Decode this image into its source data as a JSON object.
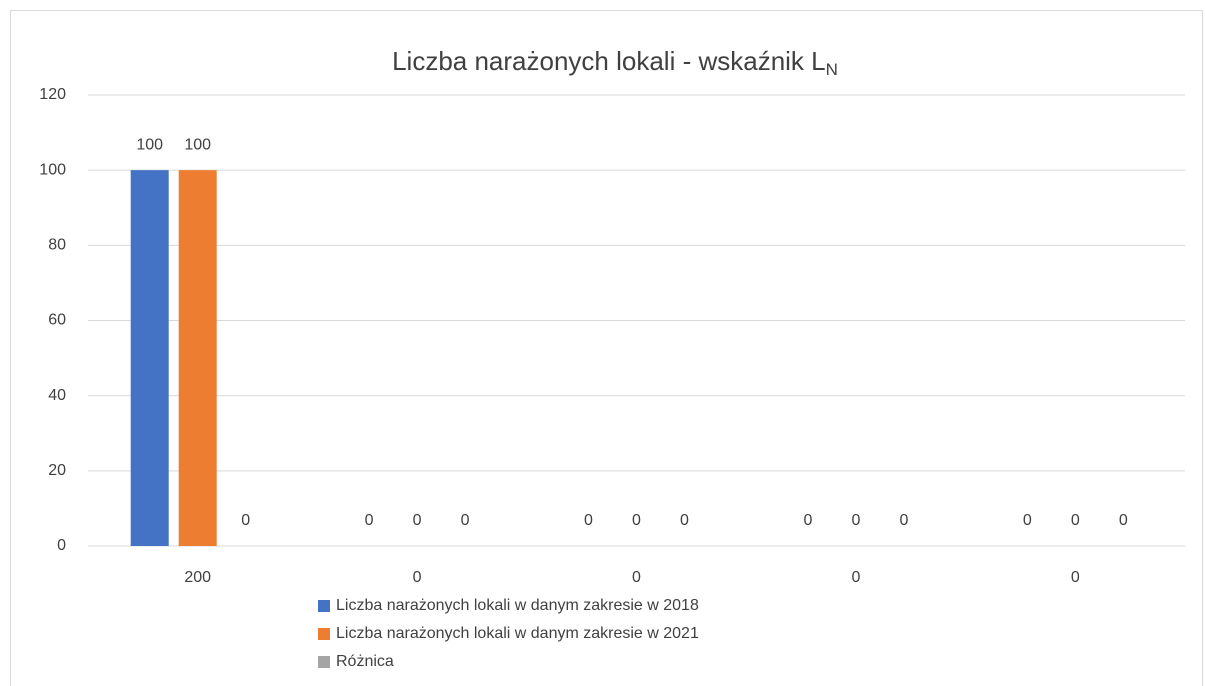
{
  "chart_data": {
    "type": "bar",
    "title": "Liczba narażonych lokali - wskaźnik L",
    "title_subscript": "N",
    "categories": [
      "200",
      "0",
      "0",
      "0",
      "0"
    ],
    "series": [
      {
        "name": "Liczba narażonych lokali w danym zakresie w 2018",
        "color": "#4472c4",
        "values": [
          100,
          0,
          0,
          0,
          0
        ]
      },
      {
        "name": "Liczba narażonych lokali w danym zakresie w 2021",
        "color": "#ed7d31",
        "values": [
          100,
          0,
          0,
          0,
          0
        ]
      },
      {
        "name": "Różnica",
        "color": "#a5a5a5",
        "values": [
          0,
          0,
          0,
          0,
          0
        ]
      }
    ],
    "ylim": [
      0,
      120
    ],
    "yticks": [
      0,
      20,
      40,
      60,
      80,
      100,
      120
    ],
    "grid": true,
    "legend": "bottom",
    "data_labels": true
  }
}
